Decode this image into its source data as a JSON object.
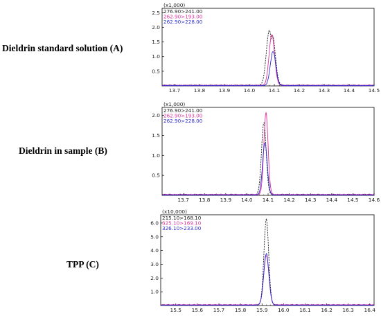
{
  "labels": {
    "a": "Dieldrin standard solution (A)",
    "b": "Dieldrin in sample (B)",
    "c": "TPP (C)"
  },
  "chart_data": [
    {
      "type": "line",
      "title": "",
      "scale_label": "(x1,000)",
      "xlim": [
        13.65,
        14.5
      ],
      "xticks": [
        "13.7",
        "13.8",
        "13.9",
        "14.0",
        "14.1",
        "14.2",
        "14.3",
        "14.4",
        "14.5"
      ],
      "ylim": [
        0,
        2.65
      ],
      "yticks": [
        "0.5",
        "1.0",
        "1.5",
        "2.0",
        "2.5"
      ],
      "series": [
        {
          "name": "276.90>241.00",
          "color": "#222222",
          "dashed": true,
          "peak_x": 14.08,
          "peak_y": 1.88,
          "shoulder": 1.72,
          "width": 0.012,
          "baseline": 0.02
        },
        {
          "name": "262.90>193.00",
          "color": "#e0309a",
          "dashed": false,
          "peak_x": 14.09,
          "peak_y": 1.74,
          "width": 0.011,
          "baseline": 0.02
        },
        {
          "name": "262.90>228.00",
          "color": "#2b2bd4",
          "dashed": false,
          "peak_x": 14.095,
          "peak_y": 1.17,
          "width": 0.011,
          "baseline": 0.01
        }
      ]
    },
    {
      "type": "line",
      "title": "",
      "scale_label": "(x1,000)",
      "xlim": [
        13.6,
        14.6
      ],
      "xticks": [
        "13.7",
        "13.8",
        "13.9",
        "14.0",
        "14.1",
        "14.2",
        "14.3",
        "14.4",
        "14.5",
        "14.6"
      ],
      "ylim": [
        0,
        2.2
      ],
      "yticks": [
        "0.5",
        "1.0",
        "1.5",
        "2.0"
      ],
      "series": [
        {
          "name": "276.90>241.00",
          "color": "#222222",
          "dashed": true,
          "peak_x": 14.08,
          "peak_y": 1.8,
          "width": 0.011,
          "baseline": 0.02
        },
        {
          "name": "262.90>193.00",
          "color": "#e0309a",
          "dashed": false,
          "peak_x": 14.09,
          "peak_y": 2.05,
          "width": 0.01,
          "baseline": 0.02
        },
        {
          "name": "262.90>228.00",
          "color": "#2b2bd4",
          "dashed": false,
          "peak_x": 14.085,
          "peak_y": 1.3,
          "width": 0.011,
          "baseline": 0.01
        }
      ]
    },
    {
      "type": "line",
      "title": "",
      "scale_label": "(x10,000)",
      "xlim": [
        15.43,
        16.42
      ],
      "xticks": [
        "15.5",
        "15.6",
        "15.7",
        "15.8",
        "15.9",
        "16.0",
        "16.1",
        "16.2",
        "16.3",
        "16.4"
      ],
      "ylim": [
        0,
        6.6
      ],
      "yticks": [
        "1.0",
        "2.0",
        "3.0",
        "4.0",
        "5.0",
        "6.0"
      ],
      "series": [
        {
          "name": "215.10>168.10",
          "color": "#222222",
          "dashed": true,
          "peak_x": 15.92,
          "peak_y": 6.25,
          "width": 0.011,
          "baseline": 0.03
        },
        {
          "name": "325.10>169.10",
          "color": "#e0309a",
          "dashed": false,
          "peak_x": 15.92,
          "peak_y": 3.6,
          "width": 0.012,
          "baseline": 0.05
        },
        {
          "name": "326.10>233.00",
          "color": "#2b2bd4",
          "dashed": false,
          "peak_x": 15.92,
          "peak_y": 3.75,
          "width": 0.012,
          "baseline": 0.03
        }
      ]
    }
  ]
}
